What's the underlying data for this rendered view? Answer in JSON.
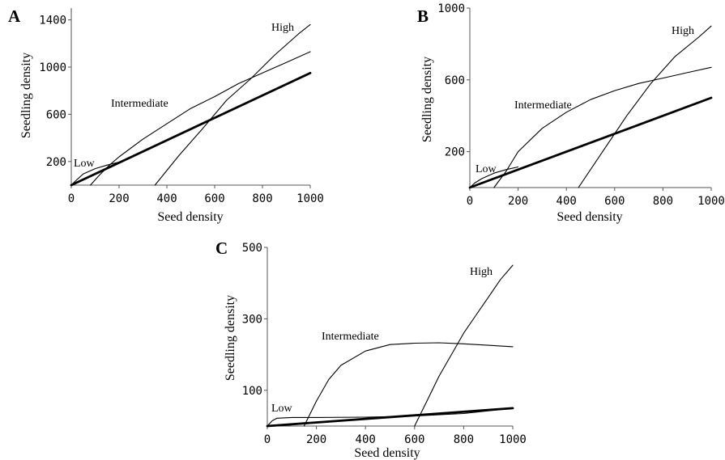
{
  "chart_data": [
    {
      "panel": "A",
      "type": "line",
      "xlabel": "Seed density",
      "ylabel": "Seedling density",
      "xlim": [
        0,
        1000
      ],
      "ylim": [
        0,
        1500
      ],
      "xticks": [
        0,
        200,
        400,
        600,
        800,
        1000
      ],
      "yticks": [
        200,
        600,
        1000,
        1400
      ],
      "series": [
        {
          "name": "Low",
          "style": "thin",
          "x": [
            0,
            20,
            50,
            100,
            150,
            200
          ],
          "y": [
            0,
            40,
            95,
            140,
            170,
            195
          ]
        },
        {
          "name": "Intermediate",
          "style": "thin",
          "x": [
            80,
            120,
            160,
            200,
            300,
            400,
            500,
            600,
            700,
            800,
            900,
            1000
          ],
          "y": [
            0,
            90,
            170,
            240,
            390,
            520,
            650,
            750,
            860,
            950,
            1040,
            1130
          ]
        },
        {
          "name": "High",
          "style": "thin",
          "x": [
            350,
            450,
            550,
            650,
            750,
            850,
            950,
            1000
          ],
          "y": [
            0,
            250,
            480,
            720,
            900,
            1100,
            1280,
            1360
          ]
        },
        {
          "name": "",
          "style": "thick",
          "x": [
            0,
            1000
          ],
          "y": [
            0,
            950
          ]
        }
      ]
    },
    {
      "panel": "B",
      "type": "line",
      "xlabel": "Seed density",
      "ylabel": "Seedling density",
      "xlim": [
        0,
        1000
      ],
      "ylim": [
        0,
        1000
      ],
      "xticks": [
        0,
        200,
        400,
        600,
        800,
        1000
      ],
      "yticks": [
        200,
        600,
        1000
      ],
      "series": [
        {
          "name": "Low",
          "style": "thin",
          "x": [
            0,
            20,
            50,
            100,
            150,
            200
          ],
          "y": [
            0,
            25,
            50,
            80,
            100,
            115
          ]
        },
        {
          "name": "Intermediate",
          "style": "thin",
          "x": [
            100,
            150,
            200,
            300,
            400,
            500,
            600,
            700,
            800,
            900,
            1000
          ],
          "y": [
            0,
            90,
            200,
            330,
            420,
            490,
            540,
            580,
            610,
            640,
            670
          ]
        },
        {
          "name": "High",
          "style": "thin",
          "x": [
            450,
            550,
            650,
            750,
            850,
            950,
            1000
          ],
          "y": [
            0,
            200,
            400,
            580,
            730,
            840,
            900
          ]
        },
        {
          "name": "",
          "style": "thick",
          "x": [
            0,
            1000
          ],
          "y": [
            0,
            500
          ]
        }
      ]
    },
    {
      "panel": "C",
      "type": "line",
      "xlabel": "Seed density",
      "ylabel": "Seedling density",
      "xlim": [
        0,
        1000
      ],
      "ylim": [
        0,
        500
      ],
      "xticks": [
        0,
        200,
        400,
        600,
        800,
        1000
      ],
      "yticks": [
        100,
        300,
        500
      ],
      "series": [
        {
          "name": "Low",
          "style": "thin",
          "x": [
            0,
            20,
            40,
            100,
            200,
            400,
            600,
            800,
            1000
          ],
          "y": [
            0,
            15,
            22,
            24,
            24,
            25,
            28,
            35,
            50
          ]
        },
        {
          "name": "Intermediate",
          "style": "thin",
          "x": [
            150,
            200,
            250,
            300,
            400,
            500,
            600,
            700,
            800,
            900,
            1000
          ],
          "y": [
            0,
            70,
            130,
            170,
            210,
            228,
            232,
            233,
            230,
            226,
            222
          ]
        },
        {
          "name": "High",
          "style": "thin",
          "x": [
            600,
            650,
            700,
            750,
            800,
            850,
            900,
            950,
            1000
          ],
          "y": [
            0,
            70,
            140,
            200,
            260,
            310,
            360,
            410,
            450
          ]
        },
        {
          "name": "",
          "style": "thick",
          "x": [
            0,
            1000
          ],
          "y": [
            0,
            50
          ]
        }
      ]
    }
  ]
}
